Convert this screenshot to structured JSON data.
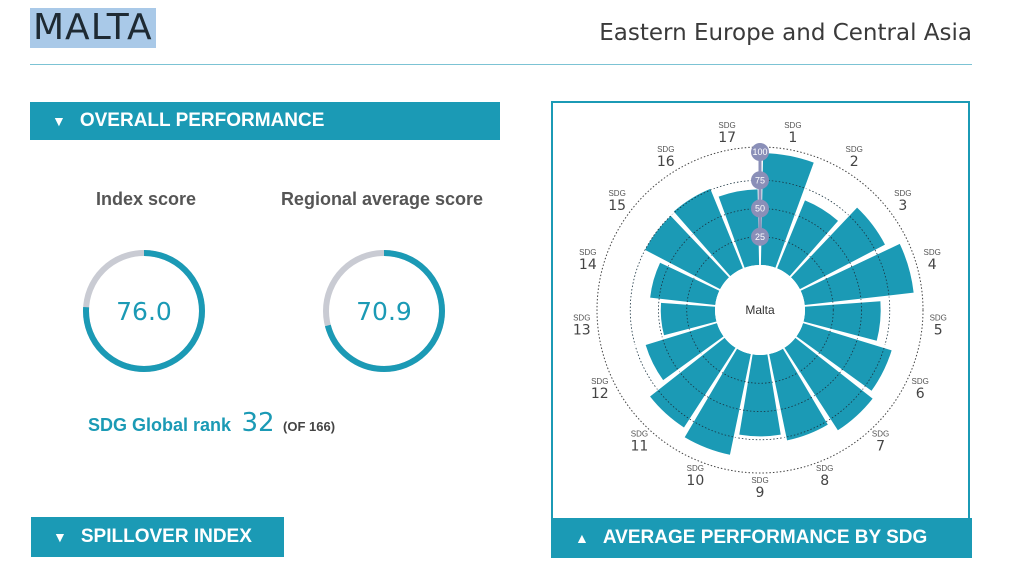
{
  "header": {
    "country": "MALTA",
    "region": "Eastern Europe and Central Asia"
  },
  "sections": {
    "overall_performance": "OVERALL PERFORMANCE",
    "spillover_index": "SPILLOVER INDEX",
    "average_performance": "AVERAGE PERFORMANCE BY SDG"
  },
  "overall": {
    "index_label": "Index score",
    "index_value": "76.0",
    "index_fraction": 0.76,
    "regional_label": "Regional average score",
    "regional_value": "70.9",
    "regional_fraction": 0.709,
    "rank_label": "SDG Global rank",
    "rank_value": "32",
    "rank_of": "(OF 166)"
  },
  "colors": {
    "accent": "#1b9ab5",
    "track": "#c9cbd3",
    "highlight": "#a9c9e8"
  },
  "chart_data": {
    "type": "radial-bar",
    "center_label": "Malta",
    "scale_ticks": [
      "25",
      "50",
      "75",
      "100"
    ],
    "rmax": 100,
    "sdg_prefix": "SDG",
    "categories": [
      "1",
      "2",
      "3",
      "4",
      "5",
      "6",
      "7",
      "8",
      "9",
      "10",
      "11",
      "12",
      "13",
      "14",
      "15",
      "16",
      "17"
    ],
    "values": [
      99,
      65,
      85,
      97,
      67,
      82,
      87,
      78,
      72,
      91,
      84,
      66,
      48,
      58,
      75,
      76,
      67
    ]
  }
}
